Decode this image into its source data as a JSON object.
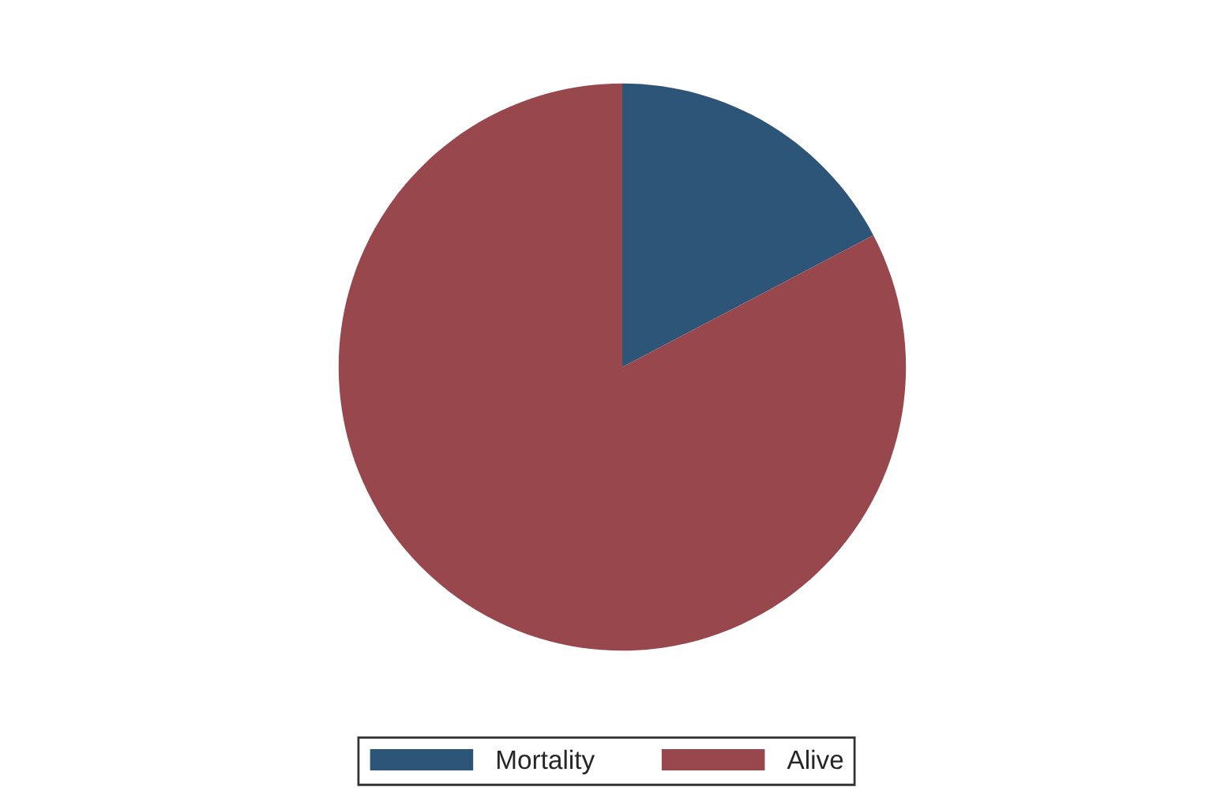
{
  "chart_data": {
    "type": "pie",
    "categories": [
      "Mortality",
      "Alive"
    ],
    "values": [
      17.3,
      82.7
    ],
    "colors": [
      "#2d5577",
      "#98474d"
    ],
    "legend": "bottom"
  }
}
